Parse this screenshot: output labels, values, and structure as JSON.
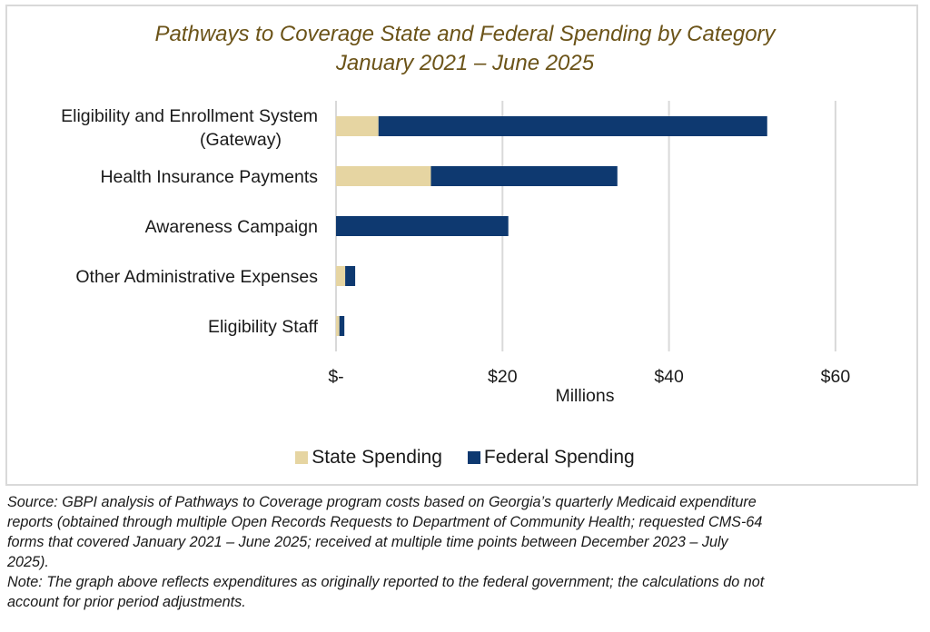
{
  "chart_data": {
    "type": "bar",
    "orientation": "horizontal",
    "stacked": true,
    "title": "Pathways to Coverage State and Federal Spending by Category",
    "subtitle": "January 2021 – June 2025",
    "categories": [
      [
        "Eligibility and Enrollment System",
        "(Gateway)"
      ],
      [
        "Health Insurance Payments"
      ],
      [
        "Awareness Campaign"
      ],
      [
        "Other Administrative Expenses"
      ],
      [
        "Eligibility Staff"
      ]
    ],
    "series": [
      {
        "name": "State Spending",
        "color": "#e6d5a2",
        "values": [
          5.1,
          11.4,
          0,
          1.1,
          0.4
        ]
      },
      {
        "name": "Federal Spending",
        "color": "#0e3970",
        "values": [
          46.7,
          22.4,
          20.7,
          1.2,
          0.6
        ]
      }
    ],
    "xlabel": "Millions",
    "ylabel": "",
    "xlim": [
      0,
      70
    ],
    "xticks": [
      0,
      20,
      40,
      60
    ],
    "xtick_labels": [
      "$-",
      "$20",
      "$40",
      "$60"
    ],
    "grid": "vertical",
    "legend_position": "bottom"
  },
  "footnotes": {
    "source_lines": [
      "Source: GBPI analysis of Pathways to Coverage program costs based on Georgia’s quarterly Medicaid expenditure",
      "reports (obtained through multiple Open Records Requests to Department of Community Health; requested CMS-64",
      "forms that covered January 2021 – June 2025; received at multiple time points between December 2023 – July",
      "2025)."
    ],
    "note_lines": [
      "Note: The graph above reflects expenditures as originally reported to the federal government; the calculations do not",
      "account for prior period adjustments."
    ]
  }
}
